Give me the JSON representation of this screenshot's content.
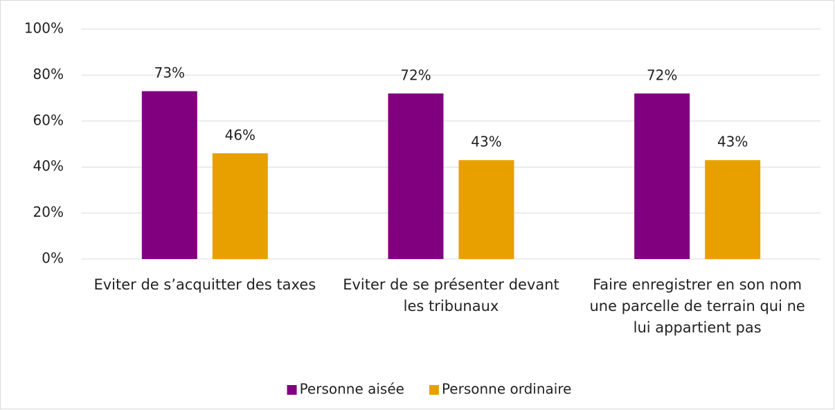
{
  "chart_data": {
    "type": "bar",
    "categories": [
      "Eviter de s’acquitter des taxes",
      "Eviter de se présenter devant les tribunaux",
      "Faire enregistrer en son nom une parcelle de terrain qui ne lui appartient pas"
    ],
    "series": [
      {
        "name": "Personne aisée",
        "color": "#800080",
        "values": [
          73,
          72,
          72
        ],
        "value_labels": [
          "73%",
          "72%",
          "72%"
        ]
      },
      {
        "name": "Personne ordinaire",
        "color": "#e8a000",
        "values": [
          46,
          43,
          43
        ],
        "value_labels": [
          "46%",
          "43%",
          "43%"
        ]
      }
    ],
    "ylim": [
      0,
      100
    ],
    "yticks": [
      {
        "value": 0,
        "label": "0%"
      },
      {
        "value": 20,
        "label": "20%"
      },
      {
        "value": 40,
        "label": "40%"
      },
      {
        "value": 60,
        "label": "60%"
      },
      {
        "value": 80,
        "label": "80%"
      },
      {
        "value": 100,
        "label": "100%"
      }
    ],
    "grid": true,
    "legend": "bottom"
  }
}
